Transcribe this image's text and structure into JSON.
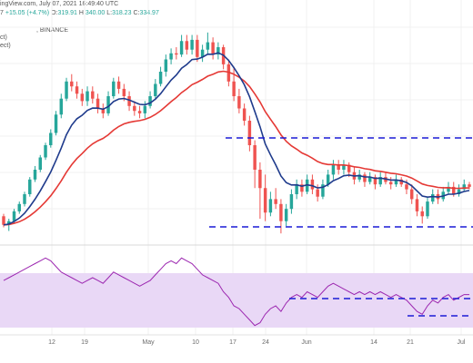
{
  "header": {
    "source": "ingView.com, July 07, 2021 16:49:40 UTC",
    "exchange": ", BINANCE",
    "ohlc_prefix": "7",
    "change": "+15.05 (+4.7%)",
    "open_label": "O:",
    "open": "319.91",
    "high_label": "H:",
    "high": "340.00",
    "low_label": "L:",
    "low": "318.23",
    "close_label": "C:",
    "close": "334.97",
    "ind1": "ct)",
    "ind2": "ect)"
  },
  "colors": {
    "up": "#26a69a",
    "down": "#ef5350",
    "ema_fast": "#1f3b8c",
    "ema_slow": "#e53935",
    "dash": "#1a1ad6",
    "rsi_line": "#9c27b0",
    "rsi_band": "#e9d8f6"
  },
  "chart_data": [
    {
      "type": "candlestick",
      "x_tick_labels": [
        "12",
        "19",
        "May",
        "10",
        "17",
        "24",
        "Jun",
        "14",
        "21",
        "Jul"
      ],
      "candles": [
        [
          262,
          255,
          264,
          253
        ],
        [
          255,
          258,
          260,
          250
        ],
        [
          258,
          266,
          268,
          256
        ],
        [
          266,
          272,
          274,
          264
        ],
        [
          272,
          280,
          282,
          270
        ],
        [
          280,
          292,
          294,
          278
        ],
        [
          292,
          300,
          303,
          290
        ],
        [
          300,
          310,
          312,
          298
        ],
        [
          310,
          320,
          322,
          308
        ],
        [
          320,
          330,
          333,
          318
        ],
        [
          330,
          345,
          348,
          328
        ],
        [
          345,
          358,
          362,
          342
        ],
        [
          358,
          372,
          375,
          356
        ],
        [
          372,
          368,
          378,
          364
        ],
        [
          368,
          362,
          372,
          358
        ],
        [
          362,
          356,
          366,
          352
        ],
        [
          356,
          364,
          368,
          352
        ],
        [
          364,
          358,
          368,
          354
        ],
        [
          358,
          350,
          362,
          346
        ],
        [
          350,
          346,
          354,
          342
        ],
        [
          346,
          360,
          364,
          344
        ],
        [
          360,
          372,
          375,
          358
        ],
        [
          372,
          366,
          376,
          362
        ],
        [
          366,
          360,
          370,
          356
        ],
        [
          360,
          352,
          364,
          348
        ],
        [
          352,
          348,
          356,
          344
        ],
        [
          348,
          346,
          352,
          342
        ],
        [
          346,
          352,
          356,
          342
        ],
        [
          352,
          360,
          364,
          350
        ],
        [
          360,
          370,
          374,
          358
        ],
        [
          370,
          380,
          384,
          368
        ],
        [
          380,
          390,
          394,
          376
        ],
        [
          390,
          395,
          399,
          386
        ],
        [
          395,
          394,
          400,
          390
        ],
        [
          394,
          405,
          410,
          392
        ],
        [
          405,
          398,
          410,
          394
        ],
        [
          398,
          406,
          410,
          394
        ],
        [
          406,
          392,
          410,
          388
        ],
        [
          392,
          398,
          402,
          388
        ],
        [
          398,
          404,
          412,
          394
        ],
        [
          404,
          394,
          408,
          390
        ],
        [
          394,
          400,
          404,
          390
        ],
        [
          400,
          386,
          402,
          382
        ],
        [
          386,
          372,
          390,
          368
        ],
        [
          372,
          360,
          384,
          356
        ],
        [
          360,
          350,
          366,
          346
        ],
        [
          350,
          340,
          354,
          336
        ],
        [
          340,
          320,
          344,
          315
        ],
        [
          320,
          300,
          324,
          285
        ],
        [
          300,
          285,
          306,
          260
        ],
        [
          285,
          265,
          296,
          258
        ],
        [
          265,
          276,
          282,
          262
        ],
        [
          276,
          272,
          285,
          268
        ],
        [
          272,
          258,
          276,
          248
        ],
        [
          258,
          268,
          272,
          254
        ],
        [
          268,
          280,
          284,
          264
        ],
        [
          280,
          288,
          292,
          276
        ],
        [
          288,
          282,
          292,
          278
        ],
        [
          282,
          292,
          296,
          280
        ],
        [
          292,
          284,
          296,
          280
        ],
        [
          284,
          278,
          288,
          274
        ],
        [
          278,
          288,
          292,
          276
        ],
        [
          288,
          296,
          300,
          286
        ],
        [
          296,
          304,
          308,
          292
        ],
        [
          304,
          300,
          308,
          296
        ],
        [
          300,
          304,
          308,
          296
        ],
        [
          304,
          298,
          306,
          294
        ],
        [
          298,
          292,
          302,
          288
        ],
        [
          292,
          296,
          300,
          290
        ],
        [
          296,
          290,
          298,
          286
        ],
        [
          290,
          294,
          298,
          288
        ],
        [
          294,
          288,
          296,
          284
        ],
        [
          288,
          294,
          298,
          286
        ],
        [
          294,
          290,
          298,
          288
        ],
        [
          290,
          288,
          294,
          284
        ],
        [
          288,
          292,
          296,
          286
        ],
        [
          292,
          288,
          294,
          286
        ],
        [
          288,
          284,
          292,
          280
        ],
        [
          284,
          276,
          288,
          272
        ],
        [
          276,
          266,
          280,
          262
        ],
        [
          266,
          262,
          270,
          256
        ],
        [
          262,
          274,
          278,
          260
        ],
        [
          274,
          280,
          284,
          272
        ],
        [
          280,
          276,
          284,
          272
        ],
        [
          276,
          282,
          286,
          274
        ],
        [
          282,
          286,
          290,
          280
        ],
        [
          286,
          280,
          290,
          278
        ],
        [
          280,
          284,
          288,
          278
        ],
        [
          284,
          288,
          292,
          282
        ],
        [
          288,
          286,
          290,
          284
        ]
      ]
    },
    {
      "type": "line",
      "panel": "RSI",
      "values": [
        58,
        60,
        62,
        64,
        66,
        68,
        70,
        72,
        74,
        72,
        68,
        64,
        62,
        60,
        58,
        56,
        58,
        60,
        58,
        56,
        60,
        64,
        62,
        60,
        58,
        56,
        54,
        56,
        58,
        62,
        66,
        70,
        72,
        70,
        74,
        72,
        70,
        66,
        62,
        60,
        58,
        56,
        50,
        46,
        40,
        38,
        34,
        30,
        26,
        28,
        34,
        38,
        40,
        36,
        42,
        46,
        48,
        46,
        50,
        48,
        46,
        50,
        54,
        56,
        54,
        52,
        50,
        48,
        50,
        48,
        50,
        48,
        50,
        48,
        46,
        48,
        46,
        44,
        40,
        36,
        34,
        40,
        44,
        42,
        46,
        48,
        44,
        46,
        48,
        48
      ]
    }
  ]
}
